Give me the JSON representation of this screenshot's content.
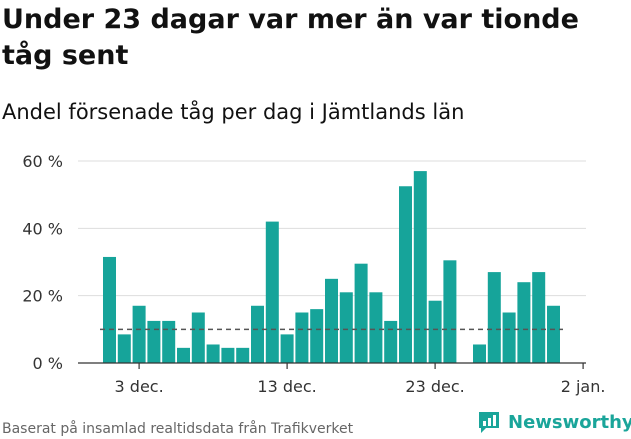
{
  "title": "Under 23 dagar var mer än var tionde tåg sent",
  "subtitle": "Andel försenade tåg per dag i Jämtlands län",
  "source": "Baserat på insamlad realtidsdata från Trafikverket",
  "brand": "Newsworthy",
  "colors": {
    "bar": "#16a49a",
    "reference_line": "#555555",
    "grid": "#dddddd",
    "brand": "#1aa59a"
  },
  "chart_data": {
    "type": "bar",
    "title": "Under 23 dagar var mer än var tionde tåg sent",
    "subtitle": "Andel försenade tåg per dag i Jämtlands län",
    "x": [
      "2019-12-01",
      "2019-12-02",
      "2019-12-03",
      "2019-12-04",
      "2019-12-05",
      "2019-12-06",
      "2019-12-07",
      "2019-12-08",
      "2019-12-09",
      "2019-12-10",
      "2019-12-11",
      "2019-12-12",
      "2019-12-13",
      "2019-12-14",
      "2019-12-15",
      "2019-12-16",
      "2019-12-17",
      "2019-12-18",
      "2019-12-19",
      "2019-12-20",
      "2019-12-21",
      "2019-12-22",
      "2019-12-23",
      "2019-12-24",
      "2019-12-25",
      "2019-12-26",
      "2019-12-27",
      "2019-12-28",
      "2019-12-29",
      "2019-12-30",
      "2019-12-31"
    ],
    "values": [
      31.5,
      8.5,
      17,
      12.5,
      12.5,
      4.5,
      15,
      5.5,
      4.5,
      4.5,
      17,
      42,
      8.5,
      15,
      16,
      25,
      21,
      29.5,
      21,
      12.5,
      52.5,
      57,
      18.5,
      30.5,
      null,
      5.5,
      27,
      15,
      24,
      27,
      17
    ],
    "reference_line": 10,
    "ylim": [
      0,
      60
    ],
    "y_ticks": [
      0,
      20,
      40,
      60
    ],
    "y_tick_labels": [
      "0 %",
      "20 %",
      "40 %",
      "60 %"
    ],
    "x_ticks": [
      "2019-12-03",
      "2019-12-13",
      "2019-12-23",
      "2020-01-02"
    ],
    "x_tick_labels": [
      "3 dec.",
      "13 dec.",
      "23 dec.",
      "2 jan."
    ],
    "grid": true,
    "legend": "none"
  }
}
